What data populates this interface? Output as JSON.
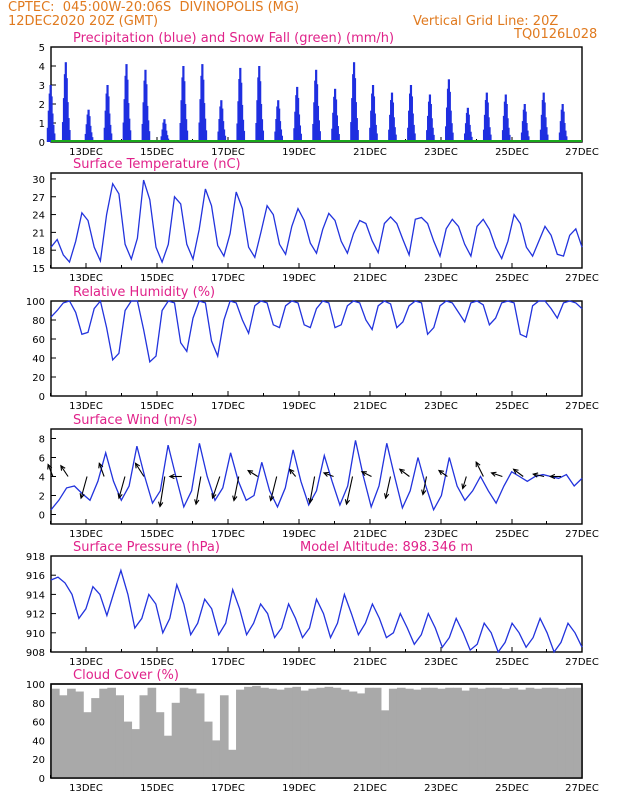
{
  "header": {
    "left_line1": "CPTEC:  045:00W-20:06S  DIVINOPOLIS (MG)",
    "left_line2": "12DEC2020 20Z (GMT)",
    "right_line1": "Vertical Grid Line: 20Z",
    "right_line2": "TQ0126L028"
  },
  "date_labels": [
    "13DEC",
    "15DEC",
    "17DEC",
    "19DEC",
    "21DEC",
    "23DEC",
    "25DEC",
    "27DEC"
  ],
  "chart_data": [
    {
      "type": "bar",
      "title": "Precipitation (blue) and Snow Fall (green) (mm/h)",
      "ylim": [
        0,
        5
      ],
      "yticks": [
        0,
        1,
        2,
        3,
        4,
        5
      ],
      "colors": {
        "precip": "#1f2fe0",
        "snow": "#1aa81a"
      },
      "series": [
        {
          "name": "Precipitation",
          "day_peaks": [
            [
              0.5,
              3.0
            ],
            [
              0.9,
              4.2
            ],
            [
              1.5,
              1.7
            ],
            [
              2.0,
              3.0
            ],
            [
              2.5,
              4.1
            ],
            [
              3.0,
              3.8
            ],
            [
              3.5,
              1.2
            ],
            [
              4.0,
              4.0
            ],
            [
              4.5,
              4.1
            ],
            [
              5.0,
              2.2
            ],
            [
              5.5,
              3.9
            ],
            [
              6.0,
              4.0
            ],
            [
              6.5,
              2.2
            ],
            [
              7.0,
              2.9
            ],
            [
              7.5,
              3.8
            ],
            [
              8.0,
              2.8
            ],
            [
              8.5,
              4.2
            ],
            [
              9.0,
              3.0
            ],
            [
              9.5,
              2.6
            ],
            [
              10.0,
              3.0
            ],
            [
              10.5,
              2.5
            ],
            [
              11.0,
              3.3
            ],
            [
              11.5,
              1.8
            ],
            [
              12.0,
              2.6
            ],
            [
              12.5,
              2.5
            ],
            [
              13.0,
              2.0
            ],
            [
              13.5,
              2.6
            ],
            [
              14.0,
              2.0
            ]
          ]
        },
        {
          "name": "Snow Fall",
          "values": [
            0
          ]
        }
      ]
    },
    {
      "type": "line",
      "title": "Surface Temperature (nC)",
      "ylim": [
        15,
        31
      ],
      "yticks": [
        15,
        18,
        21,
        24,
        27,
        30
      ],
      "color": "#2233dd",
      "y": [
        18.5,
        19.8,
        17.2,
        16.0,
        19.5,
        24.3,
        23.0,
        18.5,
        16.2,
        24.0,
        29.2,
        27.5,
        19.0,
        16.5,
        20.0,
        29.8,
        26.5,
        18.5,
        16.0,
        19.0,
        27.0,
        25.8,
        19.0,
        16.5,
        21.5,
        28.3,
        25.5,
        18.8,
        17.0,
        20.8,
        27.8,
        25.0,
        18.5,
        16.8,
        21.0,
        25.5,
        24.0,
        19.0,
        17.3,
        22.0,
        25.0,
        23.0,
        19.2,
        17.5,
        21.5,
        24.2,
        23.0,
        19.5,
        17.5,
        20.8,
        23.0,
        22.5,
        19.6,
        17.6,
        22.5,
        23.6,
        22.5,
        19.8,
        17.2,
        23.2,
        23.5,
        22.5,
        19.5,
        17.0,
        21.6,
        23.2,
        22.0,
        19.0,
        17.0,
        22.0,
        23.2,
        21.5,
        18.5,
        16.6,
        19.5,
        24.0,
        22.5,
        18.5,
        17.0,
        19.5,
        22.0,
        20.5,
        17.3,
        17.0,
        20.5,
        21.6,
        18.5
      ]
    },
    {
      "type": "line",
      "title": "Relative Humidity (%)",
      "ylim": [
        0,
        100
      ],
      "yticks": [
        0,
        20,
        40,
        60,
        80,
        100
      ],
      "color": "#2233dd",
      "y": [
        83,
        90,
        98,
        100,
        88,
        65,
        67,
        92,
        100,
        72,
        38,
        45,
        90,
        100,
        100,
        70,
        36,
        42,
        90,
        100,
        98,
        56,
        47,
        82,
        100,
        98,
        58,
        42,
        80,
        100,
        98,
        80,
        66,
        95,
        100,
        98,
        75,
        72,
        95,
        100,
        98,
        75,
        72,
        92,
        100,
        98,
        72,
        75,
        95,
        100,
        98,
        80,
        70,
        95,
        100,
        97,
        72,
        78,
        95,
        100,
        98,
        65,
        72,
        95,
        100,
        98,
        88,
        78,
        98,
        100,
        96,
        75,
        82,
        98,
        100,
        98,
        65,
        62,
        95,
        100,
        100,
        92,
        82,
        98,
        100,
        98,
        92
      ]
    },
    {
      "type": "line",
      "title": "Surface Wind (m/s)",
      "ylim": [
        -1,
        9
      ],
      "yticks": [
        0,
        2,
        4,
        6,
        8
      ],
      "color": "#2233dd",
      "y": [
        0.5,
        1.5,
        2.8,
        3.0,
        2.2,
        1.5,
        3.5,
        6.5,
        3.5,
        1.5,
        3.0,
        7.2,
        4.0,
        1.2,
        2.5,
        7.3,
        4.0,
        0.8,
        2.5,
        7.5,
        4.0,
        1.5,
        2.8,
        6.5,
        3.5,
        1.5,
        2.0,
        5.5,
        2.5,
        0.8,
        2.8,
        6.8,
        3.5,
        1.0,
        2.5,
        6.2,
        3.5,
        1.0,
        3.0,
        7.8,
        4.0,
        0.8,
        3.0,
        7.5,
        4.0,
        0.7,
        2.5,
        6.0,
        3.0,
        0.5,
        2.0,
        6.0,
        3.0,
        1.5,
        2.5,
        4.0,
        2.5,
        1.2,
        3.0,
        4.5,
        4.0,
        3.5,
        4.0,
        4.2,
        4.0,
        3.8,
        4.2,
        3.0,
        3.8
      ],
      "arrows": [
        [
          0.55,
          -0.4,
          1.0
        ],
        [
          0.95,
          -0.6,
          0.9
        ],
        [
          1.45,
          -0.5,
          -1.8
        ],
        [
          1.9,
          -0.4,
          1.1
        ],
        [
          2.45,
          -0.5,
          -1.8
        ],
        [
          2.95,
          -0.7,
          1.1
        ],
        [
          3.5,
          -0.4,
          -2.5
        ],
        [
          3.95,
          -1.0,
          0.0
        ],
        [
          4.45,
          -0.4,
          -2.3
        ],
        [
          4.95,
          -0.6,
          -1.8
        ],
        [
          5.45,
          -0.4,
          -2.0
        ],
        [
          5.95,
          -0.8,
          0.5
        ],
        [
          6.45,
          -0.5,
          -2.0
        ],
        [
          6.95,
          -0.5,
          0.6
        ],
        [
          7.45,
          -0.4,
          -2.2
        ],
        [
          7.95,
          -0.8,
          0.3
        ],
        [
          8.45,
          -0.5,
          -2.3
        ],
        [
          8.95,
          -0.8,
          0.4
        ],
        [
          9.45,
          -0.4,
          -1.8
        ],
        [
          9.95,
          -0.8,
          0.6
        ],
        [
          10.4,
          -0.3,
          -1.5
        ],
        [
          10.95,
          -0.7,
          0.5
        ],
        [
          11.45,
          -0.3,
          -1.0
        ],
        [
          11.9,
          -0.6,
          1.2
        ],
        [
          12.4,
          -0.9,
          0.3
        ],
        [
          12.95,
          -0.8,
          0.6
        ],
        [
          13.5,
          -0.9,
          0.2
        ],
        [
          13.95,
          -0.9,
          0.0
        ]
      ]
    },
    {
      "type": "line",
      "title": "Surface Pressure (hPa)",
      "annotation": "Model Altitude: 898.346 m",
      "ylim": [
        908,
        918
      ],
      "yticks": [
        908,
        910,
        912,
        914,
        916,
        918
      ],
      "color": "#2233dd",
      "y": [
        915.5,
        915.8,
        915.2,
        914.0,
        911.5,
        912.5,
        914.8,
        914.0,
        911.8,
        914.2,
        916.5,
        914.0,
        910.5,
        911.5,
        914.0,
        913.0,
        910.0,
        911.5,
        915.0,
        913.0,
        909.8,
        911.0,
        913.5,
        912.5,
        909.8,
        911.0,
        914.5,
        912.5,
        909.8,
        911.0,
        913.0,
        912.0,
        909.5,
        910.5,
        913.0,
        911.5,
        909.5,
        910.5,
        913.5,
        912.0,
        909.5,
        911.0,
        914.0,
        912.0,
        909.8,
        911.0,
        913.0,
        911.5,
        909.5,
        910.0,
        912.0,
        910.5,
        908.8,
        909.8,
        912.0,
        910.5,
        908.5,
        909.5,
        911.5,
        910.0,
        908.2,
        908.8,
        911.0,
        910.0,
        908.0,
        909.0,
        911.0,
        910.0,
        908.5,
        909.5,
        911.5,
        910.0,
        908.0,
        909.0,
        911.0,
        910.0,
        908.5
      ]
    },
    {
      "type": "area",
      "title": "Cloud Cover (%)",
      "ylim": [
        0,
        100
      ],
      "yticks": [
        0,
        20,
        40,
        60,
        80,
        100
      ],
      "color": "#a9a9a9",
      "y": [
        95,
        88,
        95,
        92,
        70,
        85,
        95,
        96,
        88,
        60,
        52,
        88,
        96,
        70,
        45,
        80,
        96,
        95,
        90,
        60,
        40,
        88,
        30,
        94,
        97,
        98,
        96,
        95,
        94,
        96,
        97,
        93,
        95,
        96,
        97,
        96,
        94,
        92,
        90,
        96,
        96,
        72,
        95,
        96,
        95,
        94,
        96,
        96,
        95,
        96,
        96,
        93,
        96,
        95,
        96,
        96,
        95,
        96,
        94,
        96,
        95,
        96,
        96,
        95,
        96,
        96
      ]
    }
  ]
}
